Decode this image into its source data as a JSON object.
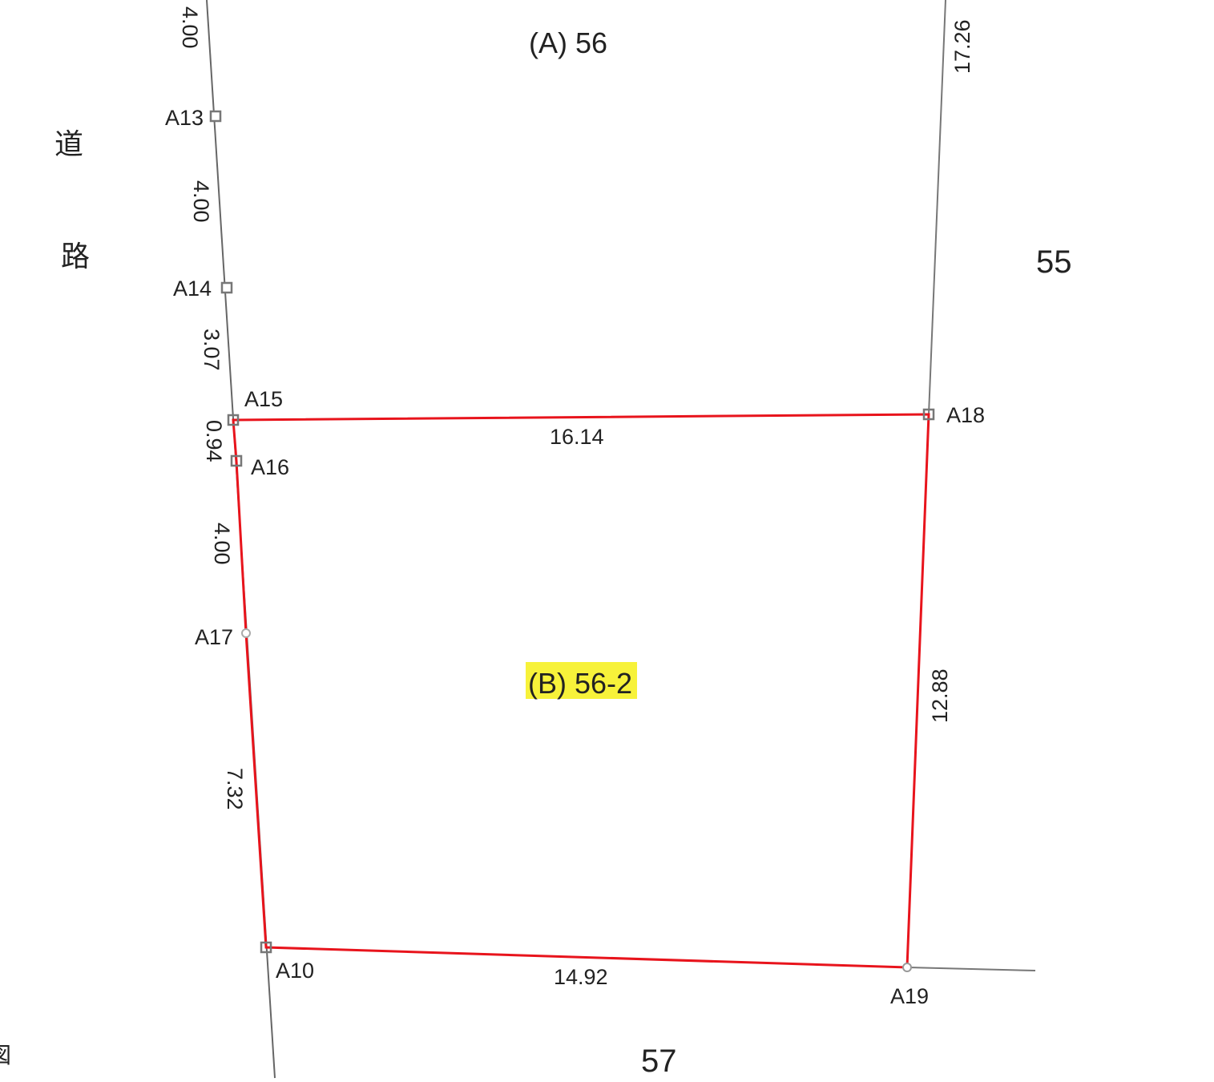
{
  "parcels": {
    "north": "(A) 56",
    "subject": "(B) 56-2",
    "east": "55",
    "south": "57"
  },
  "road_label": [
    "道",
    "路"
  ],
  "corner_fragment": "図",
  "points": [
    "A13",
    "A14",
    "A15",
    "A16",
    "A17",
    "A10",
    "A18",
    "A19"
  ],
  "dimensions": {
    "left_top": "4.00",
    "a13_a14": "4.00",
    "a14_a15": "3.07",
    "a15_a16": "0.94",
    "a16_a17": "4.00",
    "a17_a10": "7.32",
    "a15_a18": "16.14",
    "a18_a19": "12.88",
    "a10_a19": "14.92",
    "right_top": "17.26"
  },
  "colors": {
    "boundary": "#e8141c",
    "line": "#666666",
    "highlight": "#f7f23a"
  }
}
